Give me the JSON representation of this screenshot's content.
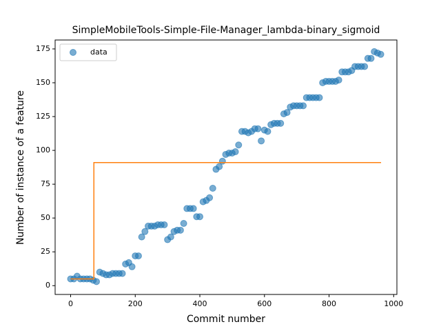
{
  "chart_data": {
    "type": "scatter",
    "title": "SimpleMobileTools-Simple-File-Manager_lambda-binary_sigmoid",
    "x_label": "Commit number",
    "y_label": "Number of instance of a feature",
    "xlim": [
      -48,
      1010
    ],
    "ylim": [
      -6.5,
      181.6
    ],
    "xticks": [
      0,
      200,
      400,
      600,
      800,
      1000
    ],
    "yticks": [
      0,
      25,
      50,
      75,
      100,
      125,
      150,
      175
    ],
    "legend": "upper left",
    "series": [
      {
        "name": "data",
        "color": "#1f77b4",
        "x": [
          0,
          10,
          20,
          30,
          40,
          50,
          60,
          70,
          80,
          90,
          100,
          110,
          120,
          130,
          140,
          150,
          160,
          170,
          180,
          190,
          200,
          210,
          220,
          230,
          240,
          250,
          260,
          270,
          280,
          290,
          300,
          310,
          320,
          330,
          340,
          350,
          360,
          370,
          380,
          390,
          400,
          410,
          420,
          430,
          440,
          450,
          460,
          470,
          480,
          490,
          500,
          510,
          520,
          530,
          540,
          550,
          560,
          570,
          580,
          590,
          600,
          610,
          620,
          630,
          640,
          650,
          660,
          670,
          680,
          690,
          700,
          710,
          720,
          730,
          740,
          750,
          760,
          770,
          780,
          790,
          800,
          810,
          820,
          830,
          840,
          850,
          860,
          870,
          880,
          890,
          900,
          910,
          920,
          930,
          940,
          950,
          960
        ],
        "values": [
          5,
          5,
          7,
          5,
          5,
          5,
          5,
          4,
          3,
          10,
          9,
          8,
          8,
          9,
          9,
          9,
          9,
          16,
          17,
          14,
          22,
          22,
          36,
          40,
          44,
          44,
          44,
          45,
          45,
          45,
          34,
          36,
          40,
          41,
          41,
          46,
          57,
          57,
          57,
          51,
          51,
          62,
          63,
          65,
          72,
          86,
          88,
          92,
          97,
          98,
          98,
          99,
          104,
          114,
          114,
          113,
          114,
          116,
          116,
          107,
          115,
          114,
          119,
          120,
          120,
          120,
          127,
          128,
          132,
          133,
          133,
          133,
          133,
          139,
          139,
          139,
          139,
          139,
          150,
          151,
          151,
          151,
          151,
          152,
          158,
          158,
          158,
          159,
          162,
          162,
          162,
          162,
          168,
          168,
          173,
          172,
          171
        ]
      }
    ],
    "lines": [
      {
        "color": "#ff7f0e",
        "x": [
          0,
          72,
          72,
          961
        ],
        "values": [
          5,
          5,
          91,
          91
        ]
      }
    ]
  }
}
